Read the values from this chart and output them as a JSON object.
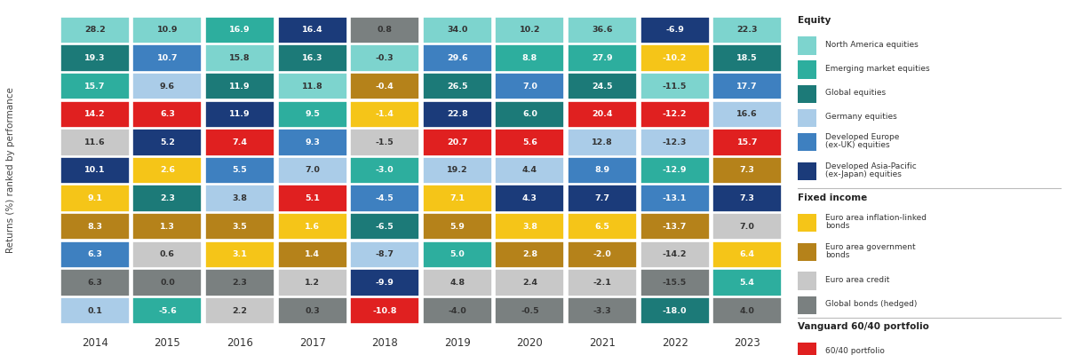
{
  "years": [
    "2014",
    "2015",
    "2016",
    "2017",
    "2018",
    "2019",
    "2020",
    "2021",
    "2022",
    "2023"
  ],
  "color_map": {
    "north_america": "#7DD4CE",
    "emerging": "#2DAE9E",
    "global_eq": "#1C7A78",
    "germany": "#AACCE8",
    "dev_europe": "#3E80C0",
    "dev_asia_pac": "#1B3B7A",
    "infl_linked": "#F5C518",
    "gov_bonds": "#B5821A",
    "credit": "#C8C8C8",
    "global_bonds": "#7A8080",
    "portfolio_60_40": "#E02020"
  },
  "grid": [
    {
      "year": "2014",
      "cells": [
        {
          "value": "28.2",
          "asset": "north_america"
        },
        {
          "value": "19.3",
          "asset": "global_eq"
        },
        {
          "value": "15.7",
          "asset": "emerging"
        },
        {
          "value": "14.2",
          "asset": "portfolio_60_40"
        },
        {
          "value": "11.6",
          "asset": "credit"
        },
        {
          "value": "10.1",
          "asset": "dev_asia_pac"
        },
        {
          "value": "9.1",
          "asset": "infl_linked"
        },
        {
          "value": "8.3",
          "asset": "gov_bonds"
        },
        {
          "value": "6.3",
          "asset": "dev_europe"
        },
        {
          "value": "6.3",
          "asset": "global_bonds"
        },
        {
          "value": "0.1",
          "asset": "germany"
        }
      ]
    },
    {
      "year": "2015",
      "cells": [
        {
          "value": "10.9",
          "asset": "north_america"
        },
        {
          "value": "10.7",
          "asset": "dev_europe"
        },
        {
          "value": "9.6",
          "asset": "germany"
        },
        {
          "value": "6.3",
          "asset": "portfolio_60_40"
        },
        {
          "value": "5.2",
          "asset": "dev_asia_pac"
        },
        {
          "value": "2.6",
          "asset": "infl_linked"
        },
        {
          "value": "2.3",
          "asset": "global_eq"
        },
        {
          "value": "1.3",
          "asset": "gov_bonds"
        },
        {
          "value": "0.6",
          "asset": "credit"
        },
        {
          "value": "0.0",
          "asset": "global_bonds"
        },
        {
          "value": "-5.6",
          "asset": "emerging"
        }
      ]
    },
    {
      "year": "2016",
      "cells": [
        {
          "value": "16.9",
          "asset": "emerging"
        },
        {
          "value": "15.8",
          "asset": "north_america"
        },
        {
          "value": "11.9",
          "asset": "global_eq"
        },
        {
          "value": "11.9",
          "asset": "dev_asia_pac"
        },
        {
          "value": "7.4",
          "asset": "portfolio_60_40"
        },
        {
          "value": "5.5",
          "asset": "dev_europe"
        },
        {
          "value": "3.8",
          "asset": "germany"
        },
        {
          "value": "3.5",
          "asset": "gov_bonds"
        },
        {
          "value": "3.1",
          "asset": "infl_linked"
        },
        {
          "value": "2.3",
          "asset": "global_bonds"
        },
        {
          "value": "2.2",
          "asset": "credit"
        }
      ]
    },
    {
      "year": "2017",
      "cells": [
        {
          "value": "16.4",
          "asset": "dev_asia_pac"
        },
        {
          "value": "16.3",
          "asset": "global_eq"
        },
        {
          "value": "11.8",
          "asset": "north_america"
        },
        {
          "value": "9.5",
          "asset": "emerging"
        },
        {
          "value": "9.3",
          "asset": "dev_europe"
        },
        {
          "value": "7.0",
          "asset": "germany"
        },
        {
          "value": "5.1",
          "asset": "portfolio_60_40"
        },
        {
          "value": "1.6",
          "asset": "infl_linked"
        },
        {
          "value": "1.4",
          "asset": "gov_bonds"
        },
        {
          "value": "1.2",
          "asset": "credit"
        },
        {
          "value": "0.3",
          "asset": "global_bonds"
        }
      ]
    },
    {
      "year": "2018",
      "cells": [
        {
          "value": "0.8",
          "asset": "global_bonds"
        },
        {
          "value": "-0.3",
          "asset": "north_america"
        },
        {
          "value": "-0.4",
          "asset": "gov_bonds"
        },
        {
          "value": "-1.4",
          "asset": "infl_linked"
        },
        {
          "value": "-1.5",
          "asset": "credit"
        },
        {
          "value": "-3.0",
          "asset": "emerging"
        },
        {
          "value": "-4.5",
          "asset": "dev_europe"
        },
        {
          "value": "-6.5",
          "asset": "global_eq"
        },
        {
          "value": "-8.7",
          "asset": "germany"
        },
        {
          "value": "-9.9",
          "asset": "dev_asia_pac"
        },
        {
          "value": "-10.8",
          "asset": "portfolio_60_40"
        }
      ]
    },
    {
      "year": "2019",
      "cells": [
        {
          "value": "34.0",
          "asset": "north_america"
        },
        {
          "value": "29.6",
          "asset": "dev_europe"
        },
        {
          "value": "26.5",
          "asset": "global_eq"
        },
        {
          "value": "22.8",
          "asset": "dev_asia_pac"
        },
        {
          "value": "20.7",
          "asset": "portfolio_60_40"
        },
        {
          "value": "19.2",
          "asset": "germany"
        },
        {
          "value": "7.1",
          "asset": "infl_linked"
        },
        {
          "value": "5.9",
          "asset": "gov_bonds"
        },
        {
          "value": "5.0",
          "asset": "emerging"
        },
        {
          "value": "4.8",
          "asset": "credit"
        },
        {
          "value": "-4.0",
          "asset": "global_bonds"
        }
      ]
    },
    {
      "year": "2020",
      "cells": [
        {
          "value": "10.2",
          "asset": "north_america"
        },
        {
          "value": "8.8",
          "asset": "emerging"
        },
        {
          "value": "7.0",
          "asset": "dev_europe"
        },
        {
          "value": "6.0",
          "asset": "global_eq"
        },
        {
          "value": "5.6",
          "asset": "portfolio_60_40"
        },
        {
          "value": "4.4",
          "asset": "germany"
        },
        {
          "value": "4.3",
          "asset": "dev_asia_pac"
        },
        {
          "value": "3.8",
          "asset": "infl_linked"
        },
        {
          "value": "2.8",
          "asset": "gov_bonds"
        },
        {
          "value": "2.4",
          "asset": "credit"
        },
        {
          "value": "-0.5",
          "asset": "global_bonds"
        }
      ]
    },
    {
      "year": "2021",
      "cells": [
        {
          "value": "36.6",
          "asset": "north_america"
        },
        {
          "value": "27.9",
          "asset": "emerging"
        },
        {
          "value": "24.5",
          "asset": "global_eq"
        },
        {
          "value": "20.4",
          "asset": "portfolio_60_40"
        },
        {
          "value": "12.8",
          "asset": "germany"
        },
        {
          "value": "8.9",
          "asset": "dev_europe"
        },
        {
          "value": "7.7",
          "asset": "dev_asia_pac"
        },
        {
          "value": "6.5",
          "asset": "infl_linked"
        },
        {
          "value": "-2.0",
          "asset": "gov_bonds"
        },
        {
          "value": "-2.1",
          "asset": "credit"
        },
        {
          "value": "-3.3",
          "asset": "global_bonds"
        }
      ]
    },
    {
      "year": "2022",
      "cells": [
        {
          "value": "-6.9",
          "asset": "dev_asia_pac"
        },
        {
          "value": "-10.2",
          "asset": "infl_linked"
        },
        {
          "value": "-11.5",
          "asset": "north_america"
        },
        {
          "value": "-12.2",
          "asset": "portfolio_60_40"
        },
        {
          "value": "-12.3",
          "asset": "germany"
        },
        {
          "value": "-12.9",
          "asset": "emerging"
        },
        {
          "value": "-13.1",
          "asset": "dev_europe"
        },
        {
          "value": "-13.7",
          "asset": "gov_bonds"
        },
        {
          "value": "-14.2",
          "asset": "credit"
        },
        {
          "value": "-15.5",
          "asset": "global_bonds"
        },
        {
          "value": "-18.0",
          "asset": "global_eq"
        }
      ]
    },
    {
      "year": "2023",
      "cells": [
        {
          "value": "22.3",
          "asset": "north_america"
        },
        {
          "value": "18.5",
          "asset": "global_eq"
        },
        {
          "value": "17.7",
          "asset": "dev_europe"
        },
        {
          "value": "16.6",
          "asset": "germany"
        },
        {
          "value": "15.7",
          "asset": "portfolio_60_40"
        },
        {
          "value": "7.3",
          "asset": "gov_bonds"
        },
        {
          "value": "7.3",
          "asset": "dev_asia_pac"
        },
        {
          "value": "7.0",
          "asset": "credit"
        },
        {
          "value": "6.4",
          "asset": "infl_linked"
        },
        {
          "value": "5.4",
          "asset": "emerging"
        },
        {
          "value": "4.0",
          "asset": "global_bonds"
        }
      ]
    }
  ],
  "ylabel": "Returns (%) ranked by performance",
  "legend_sections": [
    {
      "title": "Equity",
      "items": [
        [
          "North America equities",
          "north_america"
        ],
        [
          "Emerging market equities",
          "emerging"
        ],
        [
          "Global equities",
          "global_eq"
        ],
        [
          "Germany equities",
          "germany"
        ],
        [
          "Developed Europe (ex-UK) equities",
          "dev_europe"
        ],
        [
          "Developed Asia-Pacific (ex-Japan) equities",
          "dev_asia_pac"
        ]
      ]
    },
    {
      "title": "Fixed income",
      "items": [
        [
          "Euro area inflation-linked bonds",
          "infl_linked"
        ],
        [
          "Euro area government bonds",
          "gov_bonds"
        ],
        [
          "Euro area credit",
          "credit"
        ],
        [
          "Global bonds (hedged)",
          "global_bonds"
        ]
      ]
    },
    {
      "title": "Vanguard 60/40 portfolio",
      "items": [
        [
          "60/40 portfolio",
          "portfolio_60_40"
        ]
      ]
    }
  ]
}
